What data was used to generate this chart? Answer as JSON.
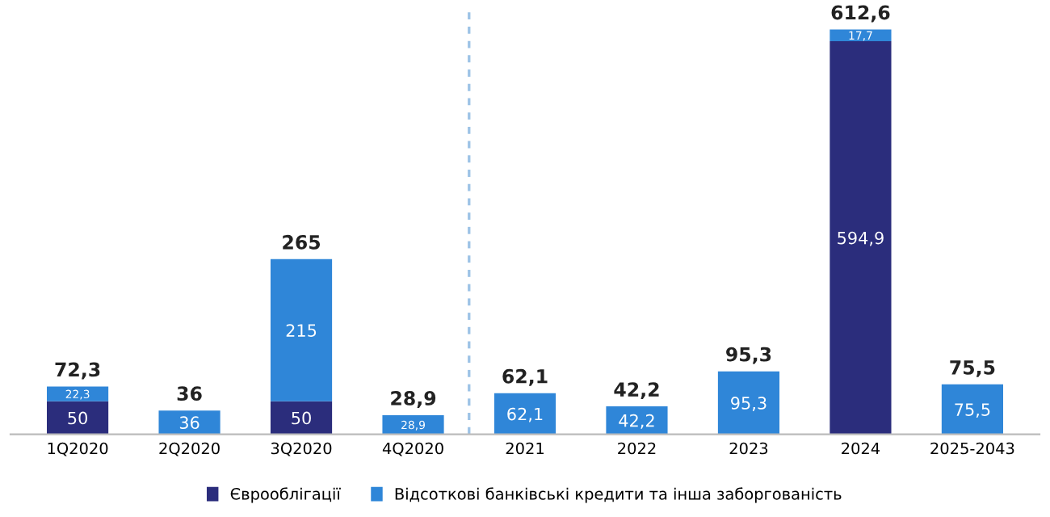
{
  "chart_data": {
    "type": "bar",
    "stacked": true,
    "categories": [
      "1Q2020",
      "2Q2020",
      "3Q2020",
      "4Q2020",
      "2021",
      "2022",
      "2023",
      "2024",
      "2025-2043"
    ],
    "series": [
      {
        "name": "Єврооблігації",
        "color": "#2b2d7c",
        "values": [
          50,
          null,
          50,
          null,
          null,
          null,
          null,
          594.9,
          null
        ],
        "value_labels": [
          "50",
          null,
          "50",
          null,
          null,
          null,
          null,
          "594,9",
          null
        ]
      },
      {
        "name": "Відсоткові банківські кредити та інша заборгованість",
        "color": "#2f86d8",
        "values": [
          22.3,
          36,
          215,
          28.9,
          62.1,
          42.2,
          95.3,
          17.7,
          75.5
        ],
        "value_labels": [
          "22,3",
          "36",
          "215",
          "28,9",
          "62,1",
          "42,2",
          "95,3",
          "17,7",
          "75,5"
        ]
      }
    ],
    "totals": [
      "72,3",
      "36",
      "265",
      "28,9",
      "62,1",
      "42,2",
      "95,3",
      "612,6",
      "75,5"
    ],
    "legend": "bottom",
    "grid": false
  }
}
